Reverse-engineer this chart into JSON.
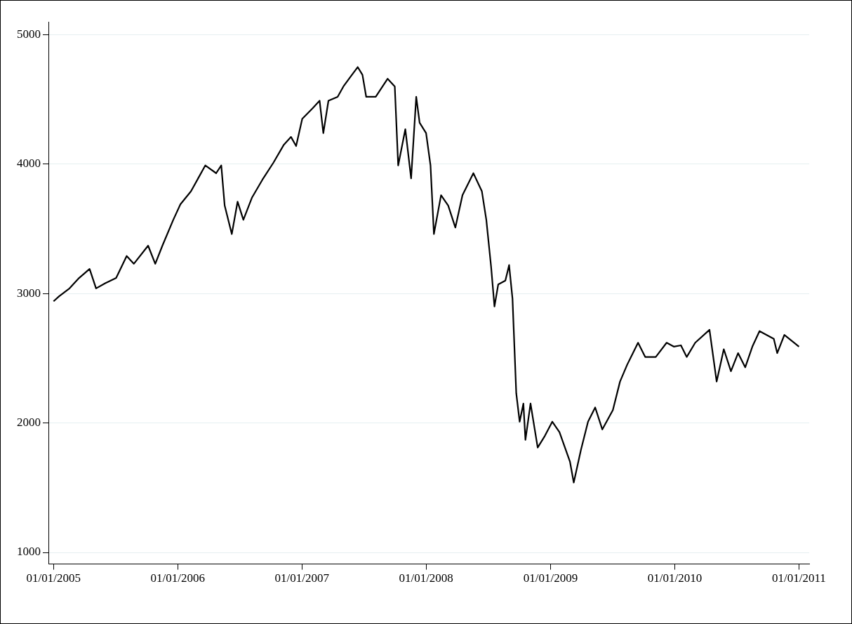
{
  "chart_data": {
    "type": "line",
    "x": [
      "2005-01-01",
      "2005-01-18",
      "2005-02-17",
      "2005-03-17",
      "2005-04-17",
      "2005-05-06",
      "2005-06-02",
      "2005-07-04",
      "2005-08-04",
      "2005-08-25",
      "2005-10-06",
      "2005-10-27",
      "2005-11-17",
      "2005-12-19",
      "2006-01-09",
      "2006-02-09",
      "2006-03-02",
      "2006-03-23",
      "2006-04-24",
      "2006-05-09",
      "2006-05-19",
      "2006-06-09",
      "2006-06-26",
      "2006-07-13",
      "2006-08-07",
      "2006-09-07",
      "2006-10-09",
      "2006-11-09",
      "2006-11-30",
      "2006-12-15",
      "2007-01-02",
      "2007-02-01",
      "2007-02-22",
      "2007-03-05",
      "2007-03-20",
      "2007-04-16",
      "2007-05-03",
      "2007-05-28",
      "2007-06-14",
      "2007-06-28",
      "2007-07-09",
      "2007-08-06",
      "2007-09-10",
      "2007-10-01",
      "2007-10-11",
      "2007-11-01",
      "2007-11-18",
      "2007-12-03",
      "2007-12-13",
      "2008-01-01",
      "2008-01-14",
      "2008-01-24",
      "2008-02-14",
      "2008-03-06",
      "2008-03-27",
      "2008-04-17",
      "2008-05-19",
      "2008-06-13",
      "2008-06-26",
      "2008-07-10",
      "2008-07-20",
      "2008-07-31",
      "2008-08-21",
      "2008-09-01",
      "2008-09-11",
      "2008-09-22",
      "2008-10-02",
      "2008-10-13",
      "2008-10-19",
      "2008-11-03",
      "2008-11-24",
      "2008-12-15",
      "2009-01-06",
      "2009-01-27",
      "2009-02-27",
      "2009-03-10",
      "2009-03-31",
      "2009-04-21",
      "2009-05-12",
      "2009-06-02",
      "2009-07-03",
      "2009-07-24",
      "2009-08-14",
      "2009-09-15",
      "2009-10-06",
      "2009-11-06",
      "2009-12-08",
      "2009-12-29",
      "2010-01-19",
      "2010-02-05",
      "2010-03-02",
      "2010-04-13",
      "2010-05-04",
      "2010-05-25",
      "2010-06-15",
      "2010-07-06",
      "2010-07-27",
      "2010-08-17",
      "2010-09-07",
      "2010-10-19",
      "2010-10-29",
      "2010-11-19",
      "2011-01-01"
    ],
    "series": [
      {
        "color": "#000000",
        "values": [
          2940,
          2980,
          3040,
          3120,
          3190,
          3040,
          3080,
          3120,
          3290,
          3230,
          3370,
          3230,
          3370,
          3570,
          3690,
          3790,
          3890,
          3990,
          3930,
          3990,
          3680,
          3460,
          3710,
          3570,
          3740,
          3880,
          4010,
          4150,
          4210,
          4140,
          4350,
          4430,
          4490,
          4240,
          4490,
          4520,
          4600,
          4690,
          4750,
          4690,
          4520,
          4520,
          4660,
          4600,
          3990,
          4270,
          3890,
          4520,
          4320,
          4240,
          3990,
          3460,
          3760,
          3680,
          3510,
          3760,
          3930,
          3790,
          3570,
          3210,
          2900,
          3070,
          3100,
          3220,
          2960,
          2230,
          2010,
          2150,
          1870,
          2150,
          1810,
          1900,
          2010,
          1930,
          1700,
          1540,
          1790,
          2010,
          2120,
          1950,
          2100,
          2320,
          2450,
          2620,
          2510,
          2510,
          2620,
          2590,
          2600,
          2510,
          2620,
          2720,
          2320,
          2570,
          2400,
          2540,
          2430,
          2590,
          2710,
          2650,
          2540,
          2680,
          2590
        ]
      }
    ],
    "xlim": [
      "2004-12-17",
      "2011-01-31"
    ],
    "xticks": [
      {
        "value": "2005-01-01",
        "label": "01/01/2005"
      },
      {
        "value": "2006-01-01",
        "label": "01/01/2006"
      },
      {
        "value": "2007-01-01",
        "label": "01/01/2007"
      },
      {
        "value": "2008-01-01",
        "label": "01/01/2008"
      },
      {
        "value": "2009-01-01",
        "label": "01/01/2009"
      },
      {
        "value": "2010-01-01",
        "label": "01/01/2010"
      },
      {
        "value": "2011-01-01",
        "label": "01/01/2011"
      }
    ],
    "ylim": [
      910,
      5100
    ],
    "yticks": [
      1000,
      2000,
      3000,
      4000,
      5000
    ],
    "grid": "y",
    "marker": "none",
    "line_style": "solid",
    "legend": false
  }
}
